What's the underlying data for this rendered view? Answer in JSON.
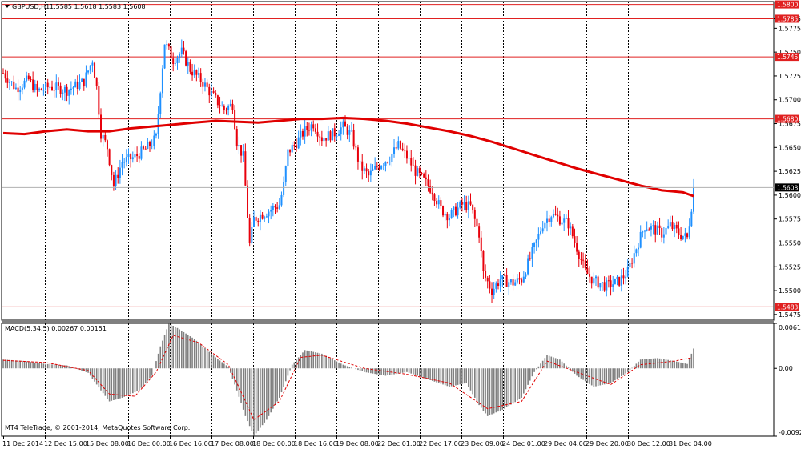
{
  "chart_data": [
    {
      "type": "candlestick",
      "header": {
        "symbol": "GBPUSD,H1",
        "ohlc": "1.5585 1.5618 1.5583 1.5608"
      },
      "ylim": [
        1.5469,
        1.5803
      ],
      "yticks": [
        "1.5785",
        "1.5775",
        "1.5750",
        "1.5725",
        "1.5700",
        "1.5675",
        "1.5650",
        "1.5625",
        "1.5600",
        "1.5575",
        "1.5550",
        "1.5525",
        "1.5500",
        "1.5475"
      ],
      "current_price": "1.5608",
      "levels": [
        {
          "value": 1.58,
          "label": "1.5800"
        },
        {
          "value": 1.5785,
          "label": "1.5785"
        },
        {
          "value": 1.5745,
          "label": "1.5745"
        },
        {
          "value": 1.568,
          "label": "1.5680"
        },
        {
          "value": 1.5483,
          "label": "1.5483"
        }
      ],
      "moving_average": [
        [
          0,
          1.5665
        ],
        [
          10,
          1.5664
        ],
        [
          20,
          1.5667
        ],
        [
          30,
          1.5669
        ],
        [
          40,
          1.5667
        ],
        [
          50,
          1.5667
        ],
        [
          60,
          1.567
        ],
        [
          70,
          1.5672
        ],
        [
          80,
          1.5674
        ],
        [
          90,
          1.5676
        ],
        [
          100,
          1.5678
        ],
        [
          110,
          1.5677
        ],
        [
          120,
          1.5676
        ],
        [
          130,
          1.5678
        ],
        [
          140,
          1.568
        ],
        [
          150,
          1.568
        ],
        [
          160,
          1.5681
        ],
        [
          170,
          1.568
        ],
        [
          180,
          1.5678
        ],
        [
          190,
          1.5675
        ],
        [
          200,
          1.5671
        ],
        [
          210,
          1.5667
        ],
        [
          220,
          1.5662
        ],
        [
          230,
          1.5656
        ],
        [
          240,
          1.5649
        ],
        [
          250,
          1.5642
        ],
        [
          260,
          1.5635
        ],
        [
          270,
          1.5628
        ],
        [
          280,
          1.5622
        ],
        [
          290,
          1.5616
        ],
        [
          300,
          1.561
        ],
        [
          310,
          1.5605
        ],
        [
          320,
          1.5603
        ],
        [
          325,
          1.5599
        ]
      ],
      "candles_keypoints": [
        [
          0,
          1.5728
        ],
        [
          6,
          1.5712
        ],
        [
          12,
          1.5721
        ],
        [
          16,
          1.5709
        ],
        [
          22,
          1.5714
        ],
        [
          30,
          1.571
        ],
        [
          38,
          1.5719
        ],
        [
          42,
          1.5742
        ],
        [
          44,
          1.5713
        ],
        [
          46,
          1.5665
        ],
        [
          49,
          1.565
        ],
        [
          52,
          1.561
        ],
        [
          56,
          1.5635
        ],
        [
          62,
          1.564
        ],
        [
          68,
          1.565
        ],
        [
          72,
          1.566
        ],
        [
          74,
          1.5712
        ],
        [
          76,
          1.576
        ],
        [
          80,
          1.5742
        ],
        [
          84,
          1.575
        ],
        [
          88,
          1.5732
        ],
        [
          94,
          1.5718
        ],
        [
          100,
          1.57
        ],
        [
          104,
          1.569
        ],
        [
          108,
          1.5695
        ],
        [
          110,
          1.5656
        ],
        [
          113,
          1.564
        ],
        [
          116,
          1.5548
        ],
        [
          118,
          1.5575
        ],
        [
          126,
          1.5585
        ],
        [
          130,
          1.559
        ],
        [
          132,
          1.561
        ],
        [
          134,
          1.5645
        ],
        [
          138,
          1.5655
        ],
        [
          142,
          1.5668
        ],
        [
          146,
          1.5675
        ],
        [
          150,
          1.566
        ],
        [
          156,
          1.5665
        ],
        [
          160,
          1.5672
        ],
        [
          164,
          1.5663
        ],
        [
          168,
          1.563
        ],
        [
          172,
          1.562
        ],
        [
          176,
          1.563
        ],
        [
          182,
          1.564
        ],
        [
          186,
          1.5652
        ],
        [
          190,
          1.564
        ],
        [
          194,
          1.5625
        ],
        [
          198,
          1.5615
        ],
        [
          202,
          1.5605
        ],
        [
          206,
          1.5585
        ],
        [
          210,
          1.5578
        ],
        [
          216,
          1.559
        ],
        [
          220,
          1.5588
        ],
        [
          224,
          1.556
        ],
        [
          226,
          1.5518
        ],
        [
          230,
          1.55
        ],
        [
          234,
          1.5512
        ],
        [
          240,
          1.5508
        ],
        [
          244,
          1.5512
        ],
        [
          250,
          1.5545
        ],
        [
          254,
          1.557
        ],
        [
          258,
          1.558
        ],
        [
          262,
          1.5575
        ],
        [
          266,
          1.557
        ],
        [
          270,
          1.5545
        ],
        [
          274,
          1.552
        ],
        [
          278,
          1.551
        ],
        [
          284,
          1.5505
        ],
        [
          290,
          1.551
        ],
        [
          294,
          1.552
        ],
        [
          298,
          1.5545
        ],
        [
          302,
          1.5568
        ],
        [
          306,
          1.5565
        ],
        [
          310,
          1.556
        ],
        [
          314,
          1.5568
        ],
        [
          318,
          1.556
        ],
        [
          322,
          1.5555
        ],
        [
          325,
          1.5605
        ]
      ]
    },
    {
      "type": "macd",
      "label": "MACD(5,34,5) 0.00267 0.00151",
      "ylim": [
        -0.00924,
        0.00613
      ],
      "yticks": [
        "0.00613",
        "0.00",
        "-0.00924"
      ],
      "histogram_keypoints": [
        [
          0,
          0.0012
        ],
        [
          10,
          0.001
        ],
        [
          20,
          0.0006
        ],
        [
          30,
          0.0004
        ],
        [
          40,
          -0.0006
        ],
        [
          46,
          -0.003
        ],
        [
          50,
          -0.0045
        ],
        [
          56,
          -0.004
        ],
        [
          64,
          -0.003
        ],
        [
          70,
          -0.001
        ],
        [
          74,
          0.003
        ],
        [
          78,
          0.0061
        ],
        [
          82,
          0.0055
        ],
        [
          90,
          0.004
        ],
        [
          100,
          0.0015
        ],
        [
          106,
          0.0002
        ],
        [
          110,
          -0.003
        ],
        [
          114,
          -0.0065
        ],
        [
          118,
          -0.0092
        ],
        [
          124,
          -0.007
        ],
        [
          130,
          -0.004
        ],
        [
          136,
          0.0005
        ],
        [
          142,
          0.0025
        ],
        [
          150,
          0.002
        ],
        [
          160,
          0.0005
        ],
        [
          170,
          -0.0005
        ],
        [
          180,
          -0.001
        ],
        [
          190,
          -0.0005
        ],
        [
          200,
          -0.0015
        ],
        [
          210,
          -0.0025
        ],
        [
          218,
          -0.002
        ],
        [
          224,
          -0.005
        ],
        [
          228,
          -0.0065
        ],
        [
          236,
          -0.0055
        ],
        [
          244,
          -0.004
        ],
        [
          250,
          -0.0005
        ],
        [
          256,
          0.0018
        ],
        [
          262,
          0.0012
        ],
        [
          270,
          -0.001
        ],
        [
          278,
          -0.0025
        ],
        [
          286,
          -0.002
        ],
        [
          294,
          -0.0005
        ],
        [
          300,
          0.0012
        ],
        [
          308,
          0.0014
        ],
        [
          316,
          0.001
        ],
        [
          322,
          0.0006
        ],
        [
          325,
          0.0027
        ]
      ],
      "signal_keypoints": [
        [
          0,
          0.0011
        ],
        [
          20,
          0.0008
        ],
        [
          40,
          -0.0003
        ],
        [
          50,
          -0.0035
        ],
        [
          62,
          -0.0038
        ],
        [
          72,
          -0.0005
        ],
        [
          80,
          0.0045
        ],
        [
          92,
          0.0035
        ],
        [
          106,
          0.0005
        ],
        [
          118,
          -0.007
        ],
        [
          130,
          -0.0045
        ],
        [
          140,
          0.0015
        ],
        [
          150,
          0.0018
        ],
        [
          170,
          0.0
        ],
        [
          190,
          -0.0008
        ],
        [
          210,
          -0.002
        ],
        [
          228,
          -0.0055
        ],
        [
          244,
          -0.0045
        ],
        [
          256,
          0.001
        ],
        [
          270,
          -0.0005
        ],
        [
          286,
          -0.0022
        ],
        [
          300,
          0.0005
        ],
        [
          316,
          0.001
        ],
        [
          325,
          0.0015
        ]
      ]
    }
  ],
  "time_labels": [
    "11 Dec 2014",
    "12 Dec 15:00",
    "15 Dec 08:00",
    "16 Dec 00:00",
    "16 Dec 16:00",
    "17 Dec 08:00",
    "18 Dec 00:00",
    "18 Dec 16:00",
    "19 Dec 08:00",
    "22 Dec 01:00",
    "22 Dec 17:00",
    "23 Dec 09:00",
    "24 Dec 01:00",
    "29 Dec 04:00",
    "29 Dec 20:00",
    "30 Dec 12:00",
    "31 Dec 04:00"
  ],
  "copyright": "MT4 TeleTrade, © 2001-2014, MetaQuotes Software Corp.",
  "colors": {
    "bull": "#1e90ff",
    "bear": "#e8000b",
    "ma": "#e00000",
    "level": "#e02020",
    "macd_hist": "#808080",
    "macd_signal": "#e00000",
    "tag_bg": "#e02020",
    "current_tag_bg": "#000000"
  }
}
